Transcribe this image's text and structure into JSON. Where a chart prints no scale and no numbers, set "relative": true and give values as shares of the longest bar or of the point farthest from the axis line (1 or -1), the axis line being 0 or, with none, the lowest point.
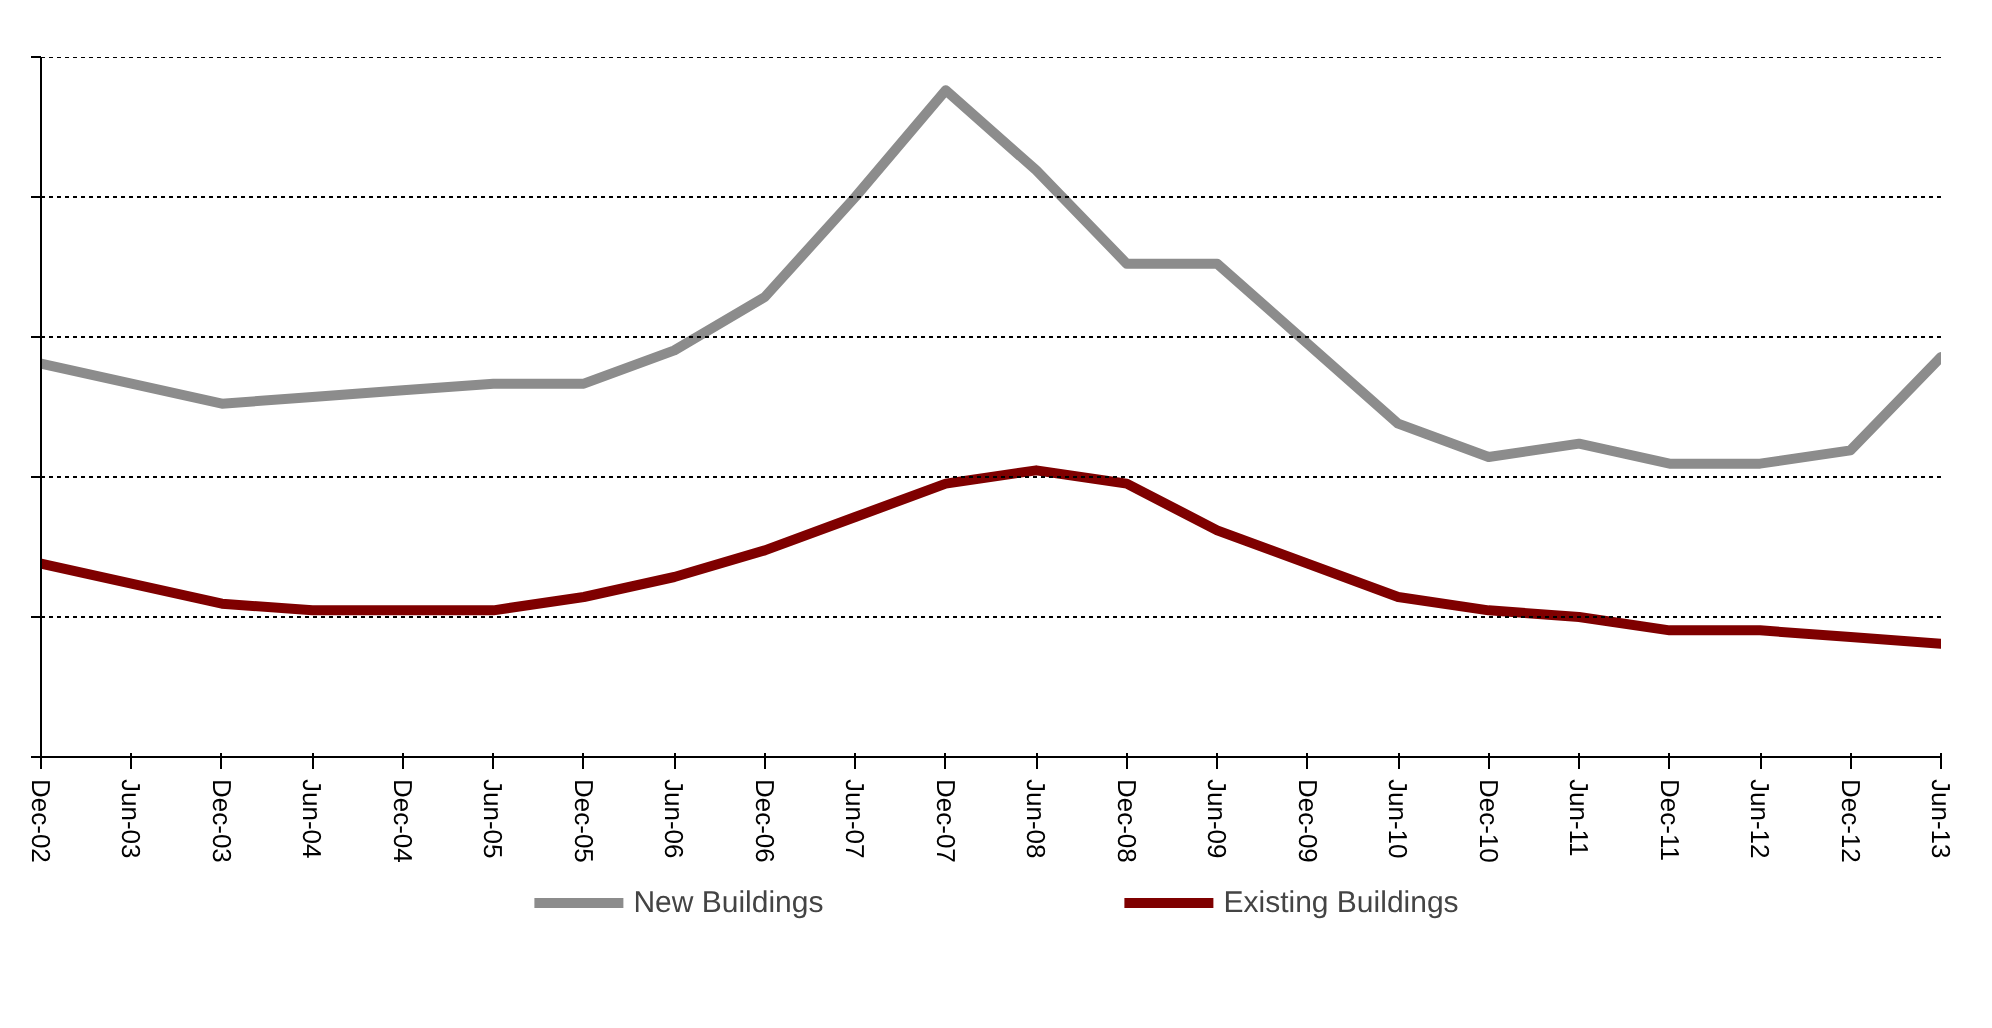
{
  "chart_data": {
    "type": "line",
    "relative": true,
    "grid": "y",
    "legend": "bottom",
    "line_style": "solid",
    "categories": [
      "Dec-02",
      "Jun-03",
      "Dec-03",
      "Jun-04",
      "Dec-04",
      "Jun-05",
      "Dec-05",
      "Jun-06",
      "Dec-06",
      "Jun-07",
      "Dec-07",
      "Jun-08",
      "Dec-08",
      "Jun-09",
      "Dec-09",
      "Jun-10",
      "Dec-10",
      "Jun-11",
      "Dec-11",
      "Jun-12",
      "Dec-12",
      "Jun-13"
    ],
    "series": [
      {
        "name": "New Buildings",
        "color": "#8c8c8c",
        "values": [
          0.59,
          0.56,
          0.53,
          0.54,
          0.55,
          0.56,
          0.56,
          0.61,
          0.69,
          0.84,
          1.0,
          0.88,
          0.74,
          0.74,
          0.62,
          0.5,
          0.45,
          0.47,
          0.44,
          0.44,
          0.46,
          0.6
        ]
      },
      {
        "name": "Existing Buildings",
        "color": "#7f0000",
        "values": [
          0.29,
          0.26,
          0.23,
          0.22,
          0.22,
          0.22,
          0.24,
          0.27,
          0.31,
          0.36,
          0.41,
          0.43,
          0.41,
          0.34,
          0.29,
          0.24,
          0.22,
          0.21,
          0.19,
          0.19,
          0.18,
          0.17
        ]
      }
    ]
  }
}
